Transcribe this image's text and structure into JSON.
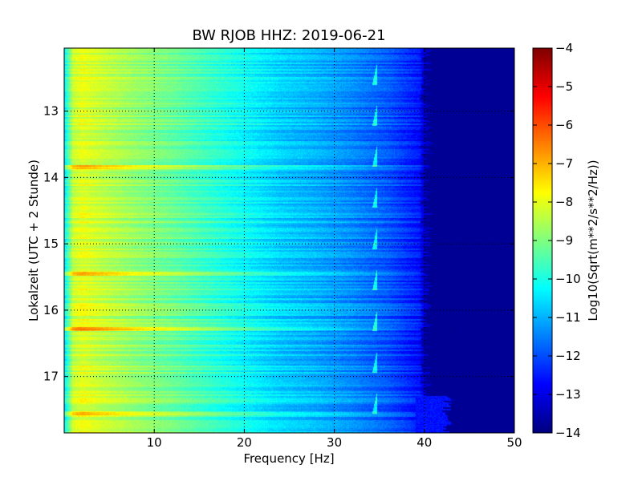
{
  "chart_data": {
    "type": "heatmap",
    "title": "BW RJOB HHZ: 2019-06-21",
    "xlabel": "Frequency [Hz]",
    "ylabel": "Lokalzeit (UTC + 2 Stunde)",
    "xlim": [
      0,
      50
    ],
    "ylim": [
      12.05,
      17.85
    ],
    "y_inverted": true,
    "grid": true,
    "x_ticks": [
      10,
      20,
      30,
      40,
      50
    ],
    "x_tick_labels": [
      "10",
      "20",
      "30",
      "40",
      "50"
    ],
    "y_ticks": [
      13,
      14,
      15,
      16,
      17
    ],
    "y_tick_labels": [
      "13",
      "14",
      "15",
      "16",
      "17"
    ],
    "colorbar": {
      "label": "Log10(Sqrt(m**2/s**2/Hz))",
      "range": [
        -14,
        -4
      ],
      "ticks": [
        -4,
        -5,
        -6,
        -7,
        -8,
        -9,
        -10,
        -11,
        -12,
        -13,
        -14
      ],
      "tick_labels": [
        "−4",
        "−5",
        "−6",
        "−7",
        "−8",
        "−9",
        "−10",
        "−11",
        "−12",
        "−13",
        "−14"
      ],
      "colormap": "jet"
    },
    "spectrum_profile": {
      "frequency_hz": [
        0,
        1,
        2,
        4,
        8,
        12,
        16,
        20,
        24,
        28,
        32,
        36,
        38,
        39.5,
        40,
        41,
        42,
        45,
        50
      ],
      "log_power": [
        -10.5,
        -8.3,
        -8.0,
        -8.3,
        -8.8,
        -9.2,
        -9.7,
        -10.2,
        -10.7,
        -11.0,
        -11.4,
        -11.9,
        -12.3,
        -12.6,
        -13.3,
        -13.7,
        -13.8,
        -13.8,
        -13.8
      ]
    },
    "bright_bands": [
      {
        "time": 13.85,
        "delta": 0.9
      },
      {
        "time": 15.45,
        "delta": 1.0
      },
      {
        "time": 16.28,
        "delta": 1.6
      },
      {
        "time": 17.55,
        "delta": 0.8
      }
    ]
  }
}
